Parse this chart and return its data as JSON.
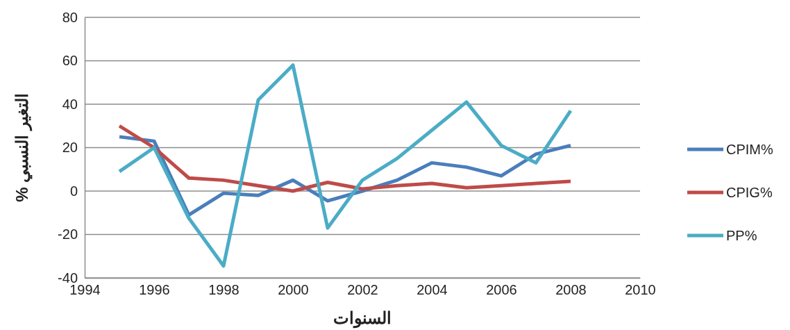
{
  "chart_data": {
    "type": "line",
    "xlabel": "السنوات",
    "ylabel": "التغير النسبي %",
    "x": [
      1995,
      1996,
      1997,
      1998,
      1999,
      2000,
      2001,
      2002,
      2003,
      2004,
      2005,
      2006,
      2007,
      2008
    ],
    "series": [
      {
        "name": "CPIM%",
        "color": "#4a7ebb",
        "values": [
          25,
          23,
          -11,
          -1,
          -2,
          5,
          -4.5,
          0,
          5,
          13,
          11,
          7,
          17,
          21
        ]
      },
      {
        "name": "CPIG%",
        "color": "#be4b48",
        "values": [
          30,
          20,
          6,
          5,
          2.5,
          0,
          4,
          1,
          2.5,
          3.5,
          1.5,
          2.5,
          3.5,
          4.5
        ]
      },
      {
        "name": "PP%",
        "color": "#4bacc6",
        "values": [
          9,
          20,
          -12.5,
          -34.5,
          42,
          58,
          -17,
          5,
          15,
          28,
          41,
          21,
          13,
          37
        ]
      }
    ],
    "xlim": [
      1994,
      2010
    ],
    "xticks": [
      1994,
      1996,
      1998,
      2000,
      2002,
      2004,
      2006,
      2008,
      2010
    ],
    "ylim": [
      -40,
      80
    ],
    "yticks": [
      -40,
      -20,
      0,
      20,
      40,
      60,
      80
    ],
    "grid": "y",
    "legend": "right",
    "marker": "none",
    "line_style": "solid"
  }
}
